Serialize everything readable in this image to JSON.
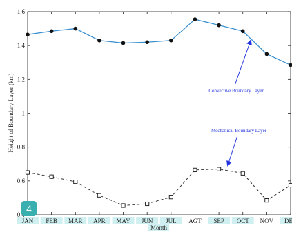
{
  "chart_data": {
    "type": "line",
    "categories": [
      "JAN",
      "FEB",
      "MAR",
      "APR",
      "MAY",
      "JUN",
      "JUL",
      "AGT",
      "SEP",
      "OCT",
      "NOV",
      "DEC"
    ],
    "series": [
      {
        "name": "Convective Boundary Layer",
        "values": [
          1.465,
          1.485,
          1.5,
          1.43,
          1.415,
          1.42,
          1.43,
          1.555,
          1.52,
          1.485,
          1.35,
          1.285
        ],
        "color": "#3a8fd0",
        "marker": "filled-circle",
        "line_style": "solid"
      },
      {
        "name": "Mechanical Boundary Layer",
        "values": [
          0.65,
          0.625,
          0.595,
          0.515,
          0.455,
          0.465,
          0.505,
          0.665,
          0.67,
          0.645,
          0.485,
          0.575
        ],
        "color": "#333333",
        "marker": "open-square",
        "line_style": "dashed"
      }
    ],
    "xlabel": "Month",
    "ylabel": "Height of Boundary Layer (km)",
    "ylim": [
      0.4,
      1.6
    ],
    "yticks": [
      "0.4",
      "0.6",
      "0.8",
      "1",
      "1.2",
      "1.4",
      "1.6"
    ],
    "grid": false,
    "annotations": [
      {
        "text": "Convective Boundary Layer",
        "color": "#2233dd",
        "points_to": "NOV"
      },
      {
        "text": "Mechanical Boundary Layer",
        "color": "#2233dd",
        "points_to": "SEP"
      }
    ],
    "x_tick_highlight_color": "#cfeff0"
  },
  "badge": {
    "text": "4",
    "color": "#3aafaf"
  }
}
